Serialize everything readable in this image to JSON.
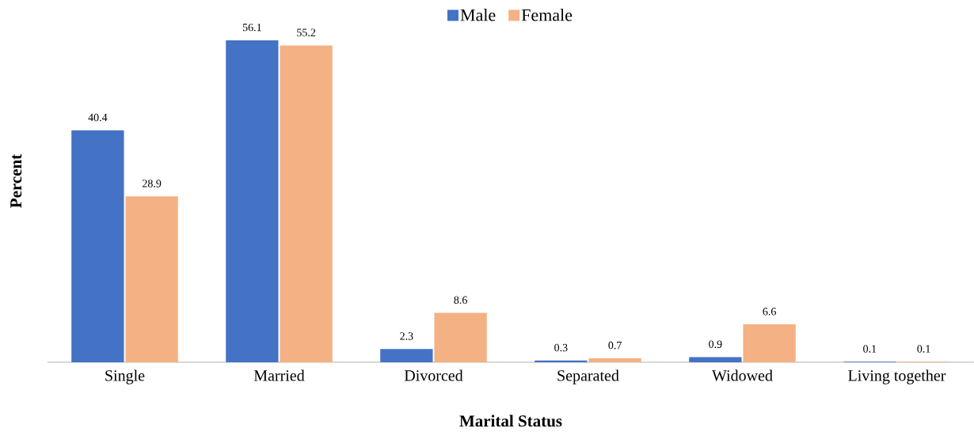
{
  "chart_data": {
    "type": "bar",
    "xlabel": "Marital Status",
    "ylabel": "Percent",
    "categories": [
      "Single",
      "Married",
      "Divorced",
      "Separated",
      "Widowed",
      "Living together"
    ],
    "series": [
      {
        "name": "Male",
        "color": "#4472c4",
        "values": [
          40.4,
          56.1,
          2.3,
          0.3,
          0.9,
          0.1
        ]
      },
      {
        "name": "Female",
        "color": "#f4b183",
        "values": [
          28.9,
          55.2,
          8.6,
          0.7,
          6.6,
          0.1
        ]
      }
    ],
    "data_labels": true,
    "legend": "top"
  }
}
